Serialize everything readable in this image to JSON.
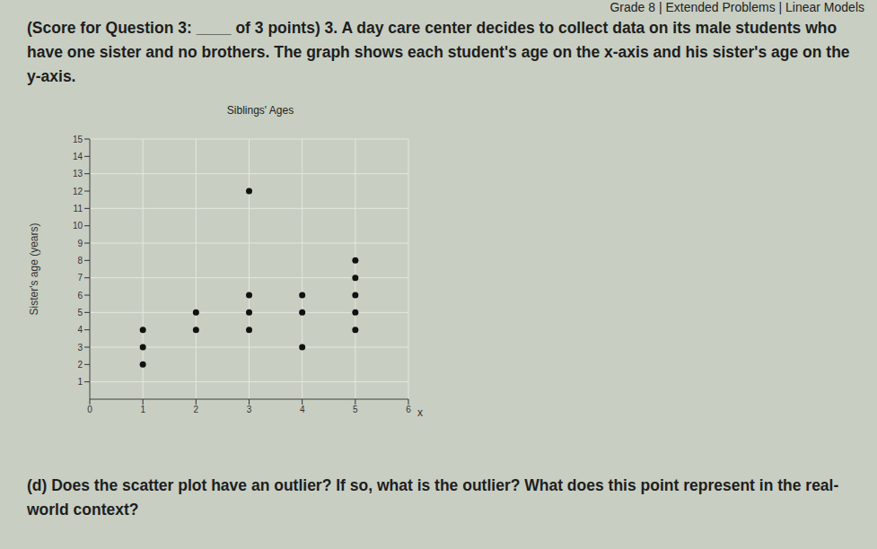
{
  "header": "Grade 8 | Extended Problems | Linear Models",
  "question": "(Score for Question 3: ____ of 3 points) 3. A day care center decides to collect data on its male students who have one sister and no brothers. The graph shows each student's age on the x-axis and his sister's age on the y-axis.",
  "part_d": "(d) Does the scatter plot have an outlier? If so, what is the outlier? What does this point represent in the real-world context?",
  "chart_data": {
    "type": "scatter",
    "title": "Siblings' Ages",
    "x_label": "x",
    "y_label": "Sister's age (years)",
    "x": [
      1,
      1,
      1,
      2,
      2,
      3,
      3,
      3,
      3,
      4,
      4,
      4,
      5,
      5,
      5,
      5,
      5
    ],
    "values": [
      4,
      3,
      2,
      5,
      4,
      12,
      6,
      5,
      4,
      6,
      5,
      3,
      8,
      7,
      6,
      5,
      4
    ],
    "color": "#111111",
    "marker": "circle",
    "xlim": [
      0,
      6
    ],
    "xticks": [
      0,
      1,
      2,
      3,
      4,
      5,
      6
    ],
    "ylim": [
      0,
      15
    ],
    "yticks": [
      1,
      2,
      3,
      4,
      5,
      6,
      7,
      8,
      9,
      10,
      11,
      12,
      13,
      14,
      15
    ],
    "grid": true
  }
}
